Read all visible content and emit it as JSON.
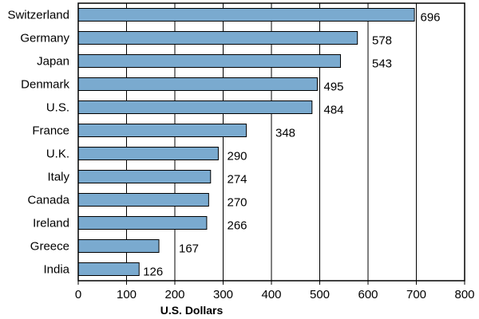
{
  "chart_data": {
    "type": "bar",
    "orientation": "horizontal",
    "categories": [
      "Switzerland",
      "Germany",
      "Japan",
      "Denmark",
      "U.S.",
      "France",
      "U.K.",
      "Italy",
      "Canada",
      "Ireland",
      "Greece",
      "India"
    ],
    "values": [
      696,
      578,
      543,
      495,
      484,
      348,
      290,
      274,
      270,
      266,
      167,
      126
    ],
    "data_labels": [
      "696",
      "578",
      "543",
      "495",
      "484",
      "348",
      "290",
      "274",
      "270",
      "266",
      "167",
      "126"
    ],
    "title": "",
    "xlabel": "U.S. Dollars",
    "ylabel": "",
    "xlim": [
      0,
      800
    ],
    "xticks": [
      0,
      100,
      200,
      300,
      400,
      500,
      600,
      700,
      800
    ],
    "xtick_labels": [
      "0",
      "100",
      "200",
      "300",
      "400",
      "500",
      "600",
      "700",
      "800"
    ],
    "grid": "vertical lines at tick values",
    "legend": "none",
    "bar_color": "#7aaacf",
    "bar_edge_color": "#000000"
  }
}
